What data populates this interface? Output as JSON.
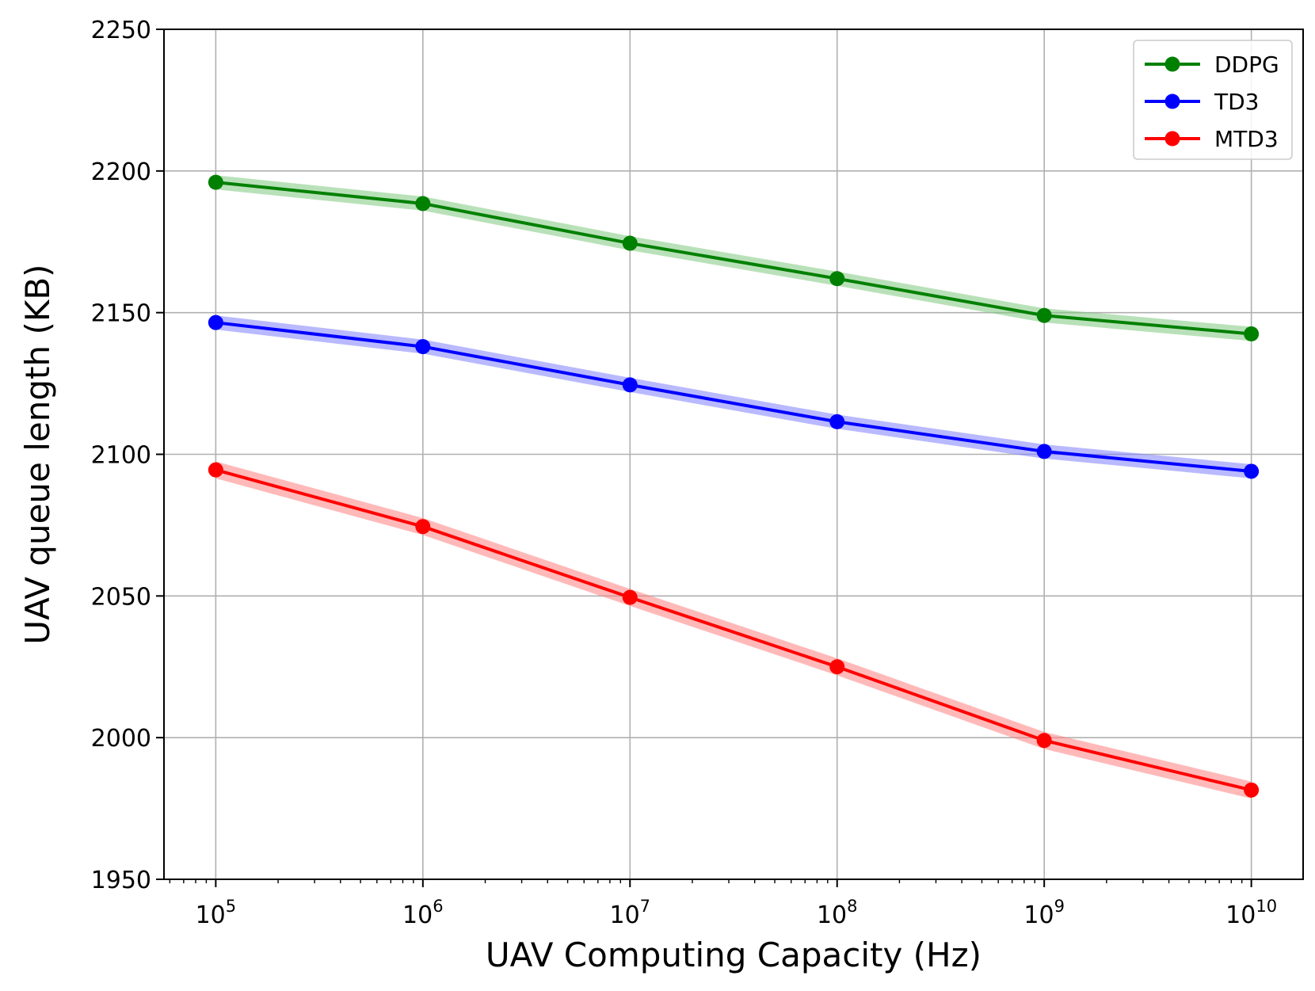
{
  "chart_data": {
    "type": "line",
    "xscale": "log",
    "xlabel": "UAV Computing Capacity (Hz)",
    "ylabel": "UAV queue length (KB)",
    "x": [
      100000,
      1000000,
      10000000,
      100000000,
      1000000000,
      10000000000
    ],
    "x_tick_labels": [
      {
        "base": "10",
        "exp": "5"
      },
      {
        "base": "10",
        "exp": "6"
      },
      {
        "base": "10",
        "exp": "7"
      },
      {
        "base": "10",
        "exp": "8"
      },
      {
        "base": "10",
        "exp": "9"
      },
      {
        "base": "10",
        "exp": "10"
      }
    ],
    "xlim_log10": [
      4.75,
      10.25
    ],
    "ylim": [
      1950,
      2250
    ],
    "yticks": [
      1950,
      2000,
      2050,
      2100,
      2150,
      2200,
      2250
    ],
    "grid": true,
    "legend_position": "top-right",
    "series": [
      {
        "name": "DDPG",
        "color": "#008000",
        "band_color": "#7fc97f",
        "values": [
          2196,
          2188.5,
          2174.5,
          2162,
          2149,
          2142.5
        ],
        "band": 2.5
      },
      {
        "name": "TD3",
        "color": "#0000ff",
        "band_color": "#8080ff",
        "values": [
          2146.5,
          2138,
          2124.5,
          2111.5,
          2101,
          2094
        ],
        "band": 2.5
      },
      {
        "name": "MTD3",
        "color": "#ff0000",
        "band_color": "#ff8080",
        "values": [
          2094.5,
          2074.5,
          2049.5,
          2025,
          1999,
          1981.5
        ],
        "band": 3
      }
    ]
  }
}
